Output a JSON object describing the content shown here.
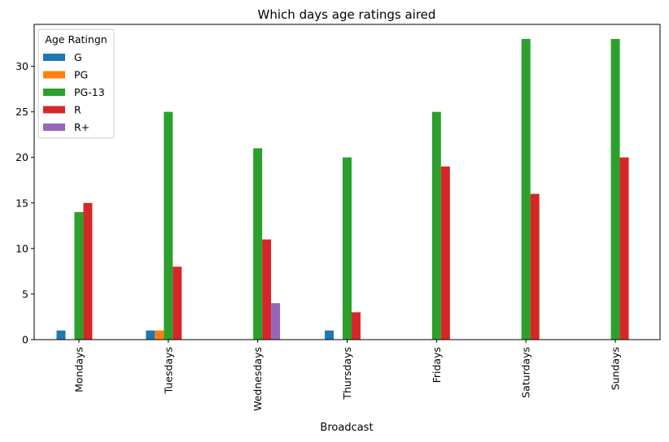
{
  "chart_data": {
    "type": "bar",
    "title": "Which days age ratings aired",
    "xlabel": "Broadcast",
    "ylabel": "",
    "categories": [
      "Mondays",
      "Tuesdays",
      "Wednesdays",
      "Thursdays",
      "Fridays",
      "Saturdays",
      "Sundays"
    ],
    "series": [
      {
        "name": "G",
        "color": "#1f77b4",
        "values": [
          1,
          1,
          0,
          1,
          0,
          0,
          0
        ]
      },
      {
        "name": "PG",
        "color": "#ff7f0e",
        "values": [
          0,
          1,
          0,
          0,
          0,
          0,
          0
        ]
      },
      {
        "name": "PG-13",
        "color": "#2ca02c",
        "values": [
          14,
          25,
          21,
          20,
          25,
          33,
          33
        ]
      },
      {
        "name": "R",
        "color": "#d62728",
        "values": [
          15,
          8,
          11,
          3,
          19,
          16,
          20
        ]
      },
      {
        "name": "R+",
        "color": "#9467bd",
        "values": [
          0,
          0,
          4,
          0,
          0,
          0,
          0
        ]
      }
    ],
    "ylim": [
      0,
      34.6
    ],
    "yticks": [
      0,
      5,
      10,
      15,
      20,
      25,
      30
    ],
    "legend": {
      "title": "Age Ratingn",
      "placement": "top-left"
    },
    "grid": false
  }
}
